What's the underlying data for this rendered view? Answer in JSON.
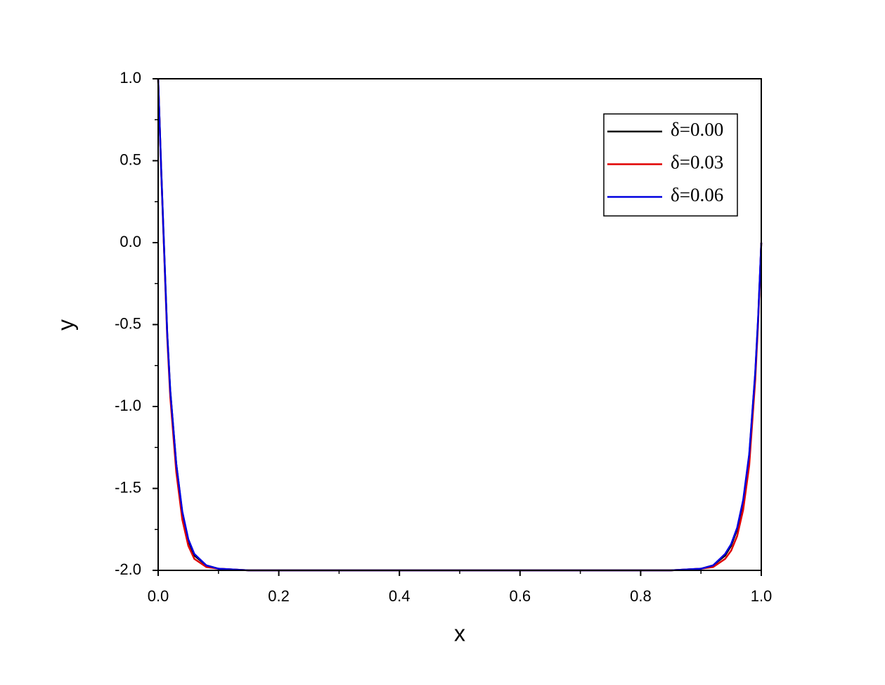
{
  "chart_data": {
    "type": "line",
    "xlabel": "x",
    "ylabel": "y",
    "x": [
      0,
      0.005,
      0.01,
      0.015,
      0.02,
      0.03,
      0.04,
      0.05,
      0.06,
      0.08,
      0.1,
      0.15,
      0.2,
      0.5,
      0.8,
      0.85,
      0.9,
      0.92,
      0.94,
      0.95,
      0.96,
      0.97,
      0.98,
      0.985,
      0.99,
      0.995,
      1
    ],
    "series": [
      {
        "name": "δ=0.00",
        "color": "#000000",
        "values": [
          1,
          0.45,
          -0.05,
          -0.55,
          -0.9,
          -1.35,
          -1.65,
          -1.82,
          -1.91,
          -1.97,
          -1.99,
          -2,
          -2,
          -2,
          -2,
          -2,
          -1.99,
          -1.97,
          -1.91,
          -1.85,
          -1.75,
          -1.58,
          -1.3,
          -1.05,
          -0.8,
          -0.45,
          0
        ]
      },
      {
        "name": "δ=0.03",
        "color": "#e00000",
        "values": [
          1,
          0.44,
          -0.07,
          -0.58,
          -0.94,
          -1.4,
          -1.69,
          -1.85,
          -1.93,
          -1.98,
          -1.99,
          -2,
          -2,
          -2,
          -2,
          -2,
          -1.99,
          -1.98,
          -1.93,
          -1.88,
          -1.79,
          -1.63,
          -1.36,
          -1.1,
          -0.84,
          -0.47,
          0
        ]
      },
      {
        "name": "δ=0.06",
        "color": "#0000e0",
        "values": [
          1,
          0.45,
          -0.05,
          -0.55,
          -0.9,
          -1.35,
          -1.64,
          -1.81,
          -1.9,
          -1.97,
          -1.99,
          -2,
          -2,
          -2,
          -2,
          -2,
          -1.99,
          -1.97,
          -1.9,
          -1.84,
          -1.74,
          -1.57,
          -1.29,
          -1.04,
          -0.79,
          -0.44,
          0
        ]
      }
    ],
    "xlim": [
      0,
      1
    ],
    "xticks": [
      {
        "value": 0,
        "label": "0.0"
      },
      0.2,
      0.4,
      0.6,
      0.8,
      {
        "value": 1,
        "label": "1.0"
      }
    ],
    "ylim": [
      -2,
      1
    ],
    "yticks": [
      {
        "value": -2,
        "label": "-2.0"
      },
      -1.5,
      {
        "value": -1,
        "label": "-1.0"
      },
      -0.5,
      {
        "value": 0,
        "label": "0.0"
      },
      0.5,
      {
        "value": 1,
        "label": "1.0"
      }
    ],
    "grid": false,
    "legend": "upper right"
  }
}
